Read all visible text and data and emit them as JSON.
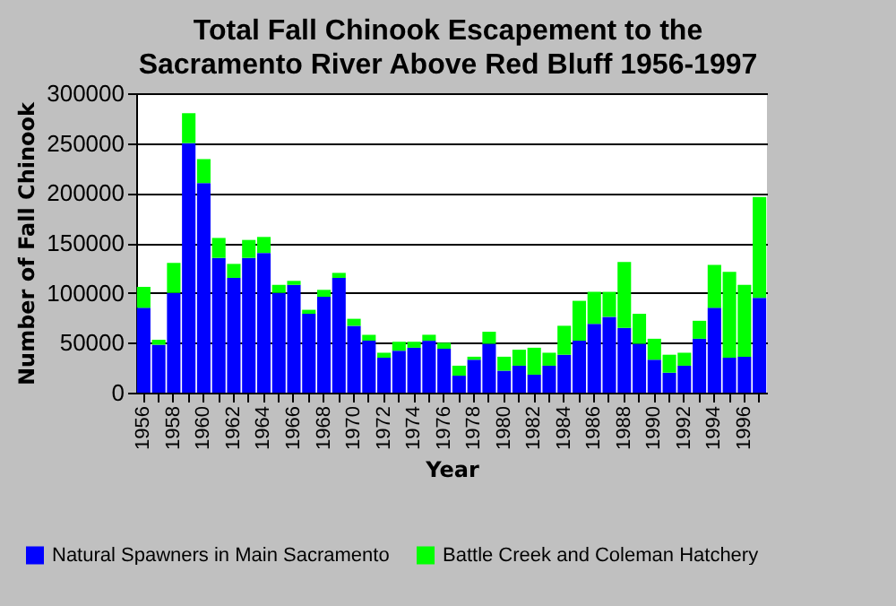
{
  "chart_data": {
    "type": "bar",
    "title": "Total Fall Chinook Escapement to the Sacramento River Above Red Bluff 1956-1997",
    "xlabel": "Year",
    "ylabel": "Number of Fall Chinook",
    "categories": [
      "1956",
      null,
      "1958",
      null,
      "1960",
      null,
      "1962",
      null,
      "1964",
      null,
      "1966",
      null,
      "1968",
      null,
      "1970",
      null,
      "1972",
      null,
      "1974",
      null,
      "1976",
      null,
      "1978",
      null,
      "1980",
      null,
      "1982",
      null,
      "1984",
      null,
      "1986",
      null,
      "1988",
      null,
      "1990",
      null,
      "1992",
      null,
      "1994",
      null,
      "1996",
      null
    ],
    "stacked": true,
    "series": [
      {
        "name": "Natural Spawners in Main Sacramento",
        "color": "#0000ff",
        "values": [
          85000,
          48000,
          100000,
          250000,
          210000,
          135000,
          115000,
          135000,
          140000,
          100000,
          108000,
          79000,
          96000,
          115000,
          67000,
          52000,
          35000,
          42000,
          45000,
          52000,
          44000,
          17000,
          33000,
          49000,
          22000,
          27000,
          18000,
          27000,
          38000,
          52000,
          69000,
          76000,
          65000,
          49000,
          33000,
          20000,
          27000,
          54000,
          85000,
          35000,
          36000,
          95000
        ]
      },
      {
        "name": "Battle Creek and Coleman Hatchery",
        "color": "#00ff00",
        "values": [
          21000,
          5000,
          30000,
          30000,
          24000,
          20000,
          14000,
          18000,
          16000,
          8000,
          4000,
          4000,
          7000,
          5000,
          7000,
          6000,
          5000,
          9000,
          6000,
          6000,
          6000,
          10000,
          3000,
          12000,
          14000,
          16000,
          27000,
          13000,
          29000,
          40000,
          32000,
          25000,
          66000,
          30000,
          21000,
          18000,
          13000,
          18000,
          43000,
          86000,
          72000,
          101000
        ]
      }
    ],
    "ylim": [
      0,
      300000
    ],
    "yticks": [
      0,
      50000,
      100000,
      150000,
      200000,
      250000,
      300000
    ],
    "grid": "y",
    "legend": "bottom"
  }
}
